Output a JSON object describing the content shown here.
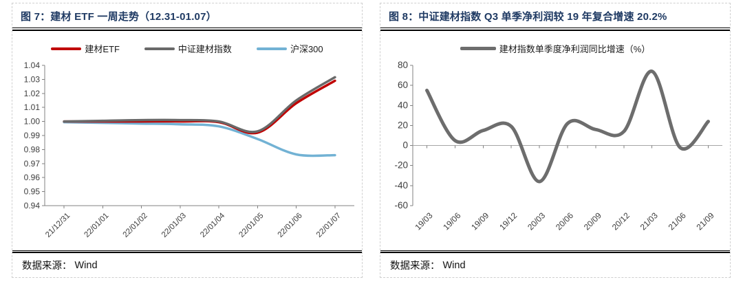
{
  "colors": {
    "title_navy": "#1F3A63",
    "axis_line": "#808080",
    "zero_line": "#a6a6a6",
    "red": "#C00000",
    "gray": "#696969",
    "light_blue": "#72B2D4"
  },
  "panels": [
    {
      "title": "图 7：建材 ETF 一周走势（12.31-01.07）",
      "source_label": "数据来源：",
      "source_value": "Wind"
    },
    {
      "title": "图 8：中证建材指数 Q3 单季净利润较 19 年复合增速 20.2%",
      "source_label": "数据来源：",
      "source_value": "Wind"
    }
  ],
  "chart_data": [
    {
      "type": "line",
      "smooth": true,
      "title": "建材 ETF 一周走势（12.31-01.07）",
      "categories": [
        "21/12/31",
        "22/01/01",
        "22/01/02",
        "22/01/03",
        "22/01/04",
        "22/01/05",
        "22/01/06",
        "22/01/07"
      ],
      "series": [
        {
          "name": "建材ETF",
          "color": "#C00000",
          "values": [
            1.0,
            1.0,
            1.0,
            1.0,
            0.9995,
            0.992,
            1.013,
            1.029
          ]
        },
        {
          "name": "中证建材指数",
          "color": "#696969",
          "values": [
            1.0,
            1.0005,
            1.001,
            1.001,
            1.0,
            0.993,
            1.015,
            1.0315
          ]
        },
        {
          "name": "沪深300",
          "color": "#72B2D4",
          "values": [
            0.9995,
            0.999,
            0.9985,
            0.998,
            0.9965,
            0.9875,
            0.9765,
            0.976
          ]
        }
      ],
      "ylim": [
        0.94,
        1.04
      ],
      "ytick_step": 0.01,
      "ytick_decimals": 2,
      "x_axis_at_zero": false,
      "line_width": 3.5,
      "legend_swatch_width": 44,
      "grid": false,
      "legend_position": "top"
    },
    {
      "type": "line",
      "smooth": true,
      "title": "中证建材指数 Q3 单季净利润较 19 年复合增速 20.2%",
      "categories": [
        "19/03",
        "19/06",
        "19/09",
        "19/12",
        "20/03",
        "20/06",
        "20/09",
        "20/12",
        "21/03",
        "21/06",
        "21/09"
      ],
      "series": [
        {
          "name": "建材指数单季度净利润同比增速（%）",
          "color": "#6D6D6D",
          "values": [
            55,
            5,
            15,
            19,
            -36,
            22,
            16,
            14,
            74,
            -2,
            24
          ]
        }
      ],
      "ylim": [
        -60,
        80
      ],
      "ytick_step": 20,
      "ytick_decimals": 0,
      "x_axis_at_zero": true,
      "line_width": 5,
      "legend_swatch_width": 52,
      "grid": false,
      "legend_position": "top"
    }
  ]
}
